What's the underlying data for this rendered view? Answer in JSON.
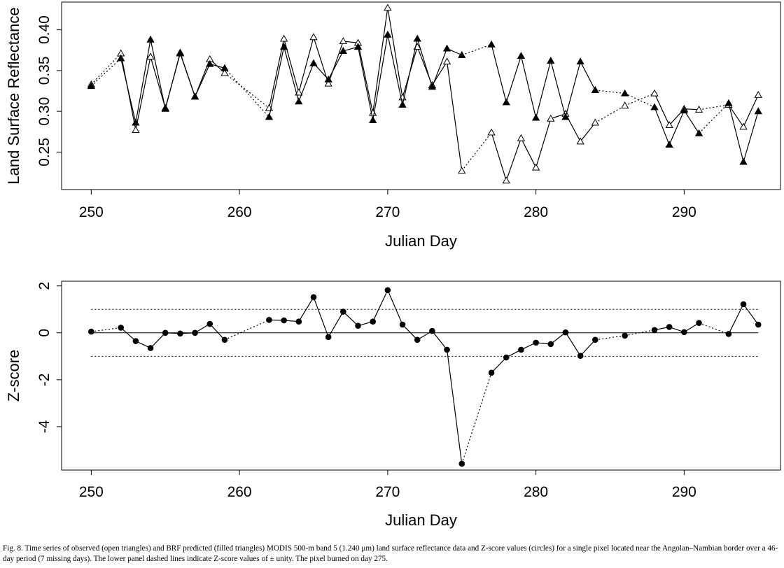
{
  "chart_data": [
    {
      "type": "line",
      "xlabel": "Julian Day",
      "ylabel": "Land Surface Reflectance",
      "xlim": [
        248,
        296.5
      ],
      "ylim": [
        0.204,
        0.434
      ],
      "xticks": [
        250,
        260,
        270,
        280,
        290
      ],
      "yticks": [
        0.25,
        0.3,
        0.35,
        0.4
      ],
      "ytick_labels": [
        "0.25",
        "0.30",
        "0.35",
        "0.40"
      ],
      "grid": false,
      "series": [
        {
          "marker": "open-triangle",
          "x": [
            250,
            252,
            253,
            254,
            255,
            256,
            257,
            258,
            259,
            262,
            263,
            264,
            265,
            266,
            267,
            268,
            269,
            270,
            271,
            272,
            273,
            274,
            275,
            277,
            278,
            279,
            280,
            281,
            282,
            283,
            284,
            286,
            288,
            289,
            290,
            291,
            293,
            294,
            295
          ],
          "y": [
            0.333,
            0.371,
            0.277,
            0.367,
            0.304,
            0.371,
            0.318,
            0.364,
            0.347,
            0.304,
            0.389,
            0.323,
            0.391,
            0.334,
            0.386,
            0.384,
            0.298,
            0.427,
            0.317,
            0.379,
            0.332,
            0.361,
            0.227,
            0.274,
            0.215,
            0.267,
            0.231,
            0.291,
            0.297,
            0.263,
            0.286,
            0.307,
            0.322,
            0.283,
            0.303,
            0.302,
            0.308,
            0.281,
            0.32
          ]
        },
        {
          "marker": "filled-triangle",
          "x": [
            250,
            252,
            253,
            254,
            255,
            256,
            257,
            258,
            259,
            262,
            263,
            264,
            265,
            266,
            267,
            268,
            269,
            270,
            271,
            272,
            273,
            274,
            275,
            277,
            278,
            279,
            280,
            281,
            282,
            283,
            284,
            286,
            288,
            289,
            290,
            291,
            293,
            294,
            295
          ],
          "y": [
            0.331,
            0.365,
            0.286,
            0.388,
            0.303,
            0.372,
            0.318,
            0.358,
            0.353,
            0.293,
            0.379,
            0.312,
            0.359,
            0.339,
            0.374,
            0.379,
            0.289,
            0.394,
            0.308,
            0.389,
            0.33,
            0.377,
            0.369,
            0.382,
            0.311,
            0.368,
            0.292,
            0.362,
            0.293,
            0.361,
            0.326,
            0.322,
            0.305,
            0.259,
            0.301,
            0.273,
            0.31,
            0.238,
            0.3
          ]
        }
      ]
    },
    {
      "type": "scatter",
      "xlabel": "Julian Day",
      "ylabel": "Z-score",
      "xlim": [
        248,
        296.5
      ],
      "ylim": [
        -5.85,
        2.2
      ],
      "xticks": [
        250,
        260,
        270,
        280,
        290
      ],
      "yticks": [
        -4,
        -2,
        0,
        2
      ],
      "ytick_labels": [
        "-4",
        "-2",
        "0",
        "2"
      ],
      "grid": false,
      "reference_lines": [
        {
          "y": 0,
          "style": "solid"
        },
        {
          "y": 1,
          "style": "dotted"
        },
        {
          "y": -1,
          "style": "dotted"
        }
      ],
      "series": [
        {
          "marker": "filled-circle",
          "x": [
            250,
            252,
            253,
            254,
            255,
            256,
            257,
            258,
            259,
            262,
            263,
            264,
            265,
            266,
            267,
            268,
            269,
            270,
            271,
            272,
            273,
            274,
            275,
            277,
            278,
            279,
            280,
            281,
            282,
            283,
            284,
            286,
            288,
            289,
            290,
            291,
            293,
            294,
            295
          ],
          "y": [
            0.05,
            0.22,
            -0.35,
            -0.65,
            0.0,
            -0.03,
            0.0,
            0.38,
            -0.3,
            0.55,
            0.53,
            0.48,
            1.52,
            -0.18,
            0.9,
            0.3,
            0.48,
            1.82,
            0.35,
            -0.3,
            0.08,
            -0.72,
            -5.58,
            -1.7,
            -1.05,
            -0.72,
            -0.42,
            -0.48,
            0.02,
            -0.98,
            -0.3,
            -0.12,
            0.12,
            0.25,
            0.03,
            0.42,
            -0.05,
            1.22,
            0.35
          ]
        }
      ]
    }
  ],
  "caption": "Fig. 8. Time series of observed (open triangles) and BRF predicted (filled triangles) MODIS 500-m band 5 (1.240 μm) land surface reflectance data and Z-score values (circles) for a single pixel located near the Angolan–Nambian border over a 46-day period (7 missing days). The lower panel dashed lines indicate Z-score values of ± unity. The pixel burned on day 275."
}
